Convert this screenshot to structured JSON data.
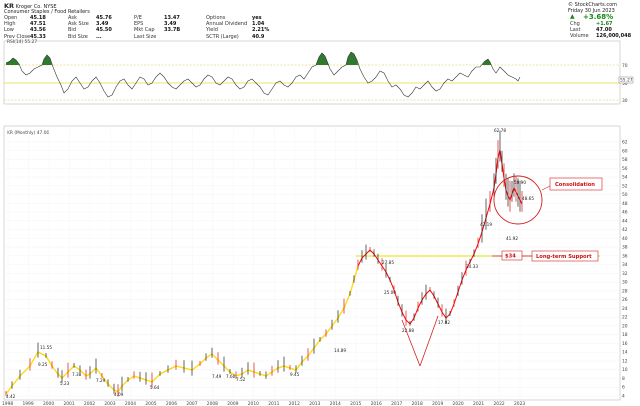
{
  "header": {
    "symbol": "KR",
    "name": "Kroger Co.",
    "exchange": "NYSE",
    "sector": "Consumer Staples / Food Retailers",
    "date": "Friday 30 Jun 2023",
    "watermark": "© StockCharts.com",
    "change_pct": "+3.68%",
    "stats": [
      {
        "label": "Open",
        "value": "45.18"
      },
      {
        "label": "High",
        "value": "47.51"
      },
      {
        "label": "Low",
        "value": "43.56"
      },
      {
        "label": "Prev Close",
        "value": "45.33"
      }
    ],
    "stats2": [
      {
        "label": "Ask",
        "value": "45.76"
      },
      {
        "label": "Ask Size",
        "value": "3.49"
      },
      {
        "label": "Bid",
        "value": "45.50"
      },
      {
        "label": "Bid Size",
        "value": "..."
      }
    ],
    "stats3": [
      {
        "label": "P/E",
        "value": "13.47"
      },
      {
        "label": "EPS",
        "value": "3.49"
      },
      {
        "label": "Mkt Cap",
        "value": "33.7B"
      },
      {
        "label": "Last Size",
        "value": ""
      }
    ],
    "stats4": [
      {
        "label": "Options",
        "value": "yes"
      },
      {
        "label": "Annual Dividend",
        "value": "1.04"
      },
      {
        "label": "Yield",
        "value": "2.21%"
      },
      {
        "label": "SCTR (Large)",
        "value": "40.9"
      }
    ],
    "quote": [
      {
        "label": "Chg",
        "value": "+1.67"
      },
      {
        "label": "Last",
        "value": "47.00"
      },
      {
        "label": "Volume",
        "value": "126,000,048"
      }
    ]
  },
  "rsi_panel": {
    "label": "RSI(14) 55.27",
    "levels": [
      "70",
      "50",
      "30"
    ],
    "last_value": "55.27"
  },
  "chart_data": {
    "type": "line",
    "title": "KR (Monthly) 47.00",
    "x": [
      "1998",
      "1999",
      "2000",
      "2001",
      "2002",
      "2003",
      "2004",
      "2005",
      "2006",
      "2007",
      "2008",
      "2009",
      "2010",
      "2011",
      "2012",
      "2013",
      "2014",
      "2015",
      "2016",
      "2017",
      "2018",
      "2019",
      "2020",
      "2021",
      "2022",
      "2023"
    ],
    "series": [
      {
        "values": [
          4.42,
          11.5,
          7.0,
          12.0,
          9.2,
          5.0,
          8.0,
          8.4,
          11.0,
          12.9,
          13.0,
          9.5,
          9.6,
          10.0,
          11.5,
          16.0,
          26.4,
          35.0,
          31.0,
          25.0,
          27.5,
          22.0,
          31.0,
          44.0,
          48.0,
          47.0
        ]
      }
    ],
    "price_ticks": [
      "62",
      "60",
      "58",
      "56",
      "54",
      "52",
      "50",
      "48",
      "46",
      "44",
      "42",
      "40",
      "38",
      "36",
      "34",
      "32",
      "30",
      "28",
      "26",
      "24",
      "22",
      "20",
      "18",
      "16",
      "14",
      "12",
      "10",
      "8",
      "6",
      "4"
    ],
    "point_labels": [
      "4.42",
      "11.55",
      "9.25",
      "5.23",
      "7.38",
      "7.29",
      "4.09",
      "5.64",
      "7.49",
      "7.60",
      "7.52",
      "9.45",
      "14.89",
      "25.00",
      "27.85",
      "22.88",
      "17.02",
      "34.33",
      "42.19",
      "41.92",
      "62.78",
      "50.90",
      "48.65"
    ],
    "annotations": [
      {
        "text": "Consolidation"
      },
      {
        "text": "$34"
      },
      {
        "text": "Long-term Support"
      }
    ]
  }
}
